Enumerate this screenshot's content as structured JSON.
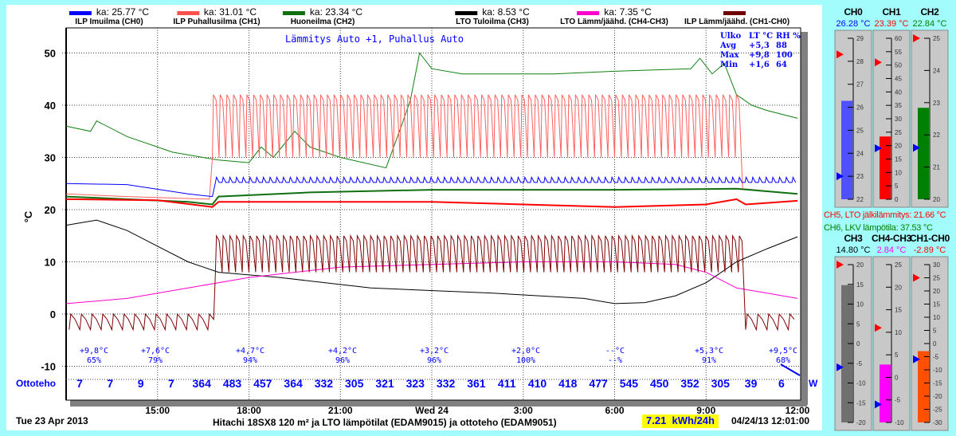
{
  "legend": [
    {
      "name": "ILP Imuilma (CH0)",
      "avg": "ka: 25.77 °C",
      "color": "#0000ff"
    },
    {
      "name": "ILP Puhallusilma (CH1)",
      "avg": "ka: 31.01 °C",
      "color": "#ff5050"
    },
    {
      "name": "Huoneilma (CH2)",
      "avg": "ka: 23.34 °C",
      "color": "#107010"
    },
    {
      "name": "LTO Tuloilma (CH3)",
      "avg": "ka: 8.53 °C",
      "color": "#000000"
    },
    {
      "name": "LTO Lämm/jäähd. (CH4-CH3)",
      "avg": "ka: 7.35 °C",
      "color": "#ff00cc"
    },
    {
      "name": "ILP Lämm/jäähd. (CH1-CH0)",
      "avg": "",
      "color": "#700000"
    }
  ],
  "mode_text": "Lämmitys Auto +1, Puhallus Auto",
  "outdoor_stats": [
    [
      "Ulko",
      "LT °C",
      "RH %"
    ],
    [
      "Avg",
      "+5,3",
      "88"
    ],
    [
      "Max",
      "+9,8",
      "100"
    ],
    [
      "Min",
      "+1,6",
      "64"
    ]
  ],
  "weather": [
    [
      "+9,8°C",
      "65%"
    ],
    [
      "+7,6°C",
      "79%"
    ],
    [
      "+4,7°C",
      "94%"
    ],
    [
      "+4,2°C",
      "96%"
    ],
    [
      "+3,2°C",
      "96%"
    ],
    [
      "+2,0°C",
      "100%"
    ],
    [
      "--°C",
      "--%"
    ],
    [
      "+5,3°C",
      "91%"
    ],
    [
      "+9,5°C",
      "68%"
    ]
  ],
  "power_label": "Ottoteho",
  "power_unit": "W",
  "power_values": [
    "7",
    "7",
    "9",
    "7",
    "364",
    "483",
    "457",
    "364",
    "332",
    "305",
    "321",
    "323",
    "332",
    "361",
    "411",
    "410",
    "418",
    "477",
    "545",
    "450",
    "352",
    "305",
    "39",
    "6"
  ],
  "date_label": "Tue 23 Apr 2013",
  "footer_title": "Hitachi 18SX8 120 m² ja LTO lämpötilat (EDAM9015) ja ottoteho (EDAM9051)",
  "energy": "7.21  kWh/24h",
  "timestamp": "04/24/13 12:01:00",
  "ch5_text": "CH5, LTO jälkilämmitys: 21.66 °C",
  "ch6_text": "CH6, LKV lämpötila: 37.53 °C",
  "gauges": [
    {
      "title": "CH0",
      "value": "26.28 °C",
      "v": 26.28,
      "min": 22,
      "max": 29,
      "step": 1,
      "red": 28.3,
      "blue": 23,
      "color": "#5050ff",
      "tcolor": "#0000ff"
    },
    {
      "title": "CH1",
      "value": "23.39 °C",
      "v": 23.39,
      "min": 0,
      "max": 60,
      "step": 5,
      "red": 51,
      "blue": 19,
      "color": "#ff0000",
      "tcolor": "#ff0000"
    },
    {
      "title": "CH2",
      "value": "22.84 °C",
      "v": 22.84,
      "min": 20,
      "max": 25,
      "step": 1,
      "red": 25,
      "blue": 21.6,
      "color": "#008000",
      "tcolor": "#008000"
    },
    {
      "title": "CH3",
      "value": "14.80 °C",
      "v": 14.8,
      "min": -20,
      "max": 20,
      "step": 5,
      "red": 20,
      "blue": -6,
      "color": "#707070",
      "tcolor": "#000000"
    },
    {
      "title": "CH4-CH3",
      "value": "2.84 °C",
      "v": 2.84,
      "min": -10,
      "max": 25,
      "step": 5,
      "red": 11,
      "blue": -6,
      "color": "#ff00ff",
      "tcolor": "#ff00ff"
    },
    {
      "title": "CH1-CH0",
      "value": "-2.89 °C",
      "v": -2.89,
      "min": -30,
      "max": 30,
      "step": 5,
      "red": 25,
      "blue": -6,
      "color": "#ff5000",
      "tcolor": "#ff0000"
    }
  ],
  "chart_data": {
    "type": "line",
    "ylabel": "°C",
    "ylim": [
      -16,
      55
    ],
    "yticks": [
      50,
      40,
      30,
      20,
      10,
      0,
      -10
    ],
    "xlim_hours": [
      12,
      36
    ],
    "xticks": [
      {
        "h": 15,
        "label": "15:00"
      },
      {
        "h": 18,
        "label": "18:00"
      },
      {
        "h": 21,
        "label": "21:00"
      },
      {
        "h": 24,
        "label": "Wed 24"
      },
      {
        "h": 27,
        "label": "3:00"
      },
      {
        "h": 30,
        "label": "6:00"
      },
      {
        "h": 33,
        "label": "9:00"
      },
      {
        "h": 36,
        "label": "12:00"
      }
    ],
    "series": [
      {
        "name": "CH6 LKV",
        "color": "#108010",
        "width": 1,
        "points": [
          [
            12,
            36
          ],
          [
            12.8,
            35
          ],
          [
            13,
            37
          ],
          [
            14,
            34
          ],
          [
            15.5,
            31
          ],
          [
            17,
            29.5
          ],
          [
            18,
            29
          ],
          [
            18.4,
            32
          ],
          [
            18.8,
            30
          ],
          [
            19.5,
            35
          ],
          [
            20,
            32
          ],
          [
            21,
            30
          ],
          [
            22.5,
            28
          ],
          [
            23,
            36
          ],
          [
            23.3,
            41
          ],
          [
            23.6,
            50
          ],
          [
            24,
            47
          ],
          [
            25,
            46
          ],
          [
            28,
            46
          ],
          [
            30,
            46.5
          ],
          [
            32.5,
            47
          ],
          [
            32.8,
            49
          ],
          [
            33.2,
            46
          ],
          [
            33.6,
            48
          ],
          [
            34,
            42
          ],
          [
            34.5,
            40
          ],
          [
            35,
            39
          ],
          [
            36,
            37.5
          ]
        ]
      },
      {
        "name": "CH1",
        "color": "#ff6060",
        "width": 1,
        "points": [
          [
            12,
            23
          ],
          [
            14,
            22.5
          ],
          [
            16.7,
            22
          ]
        ],
        "osc": {
          "start": 16.8,
          "end": 34.1,
          "low": 30,
          "high": 42,
          "period": 0.22
        },
        "tail": [
          [
            34.2,
            24
          ],
          [
            36,
            23
          ]
        ]
      },
      {
        "name": "CH0",
        "color": "#0000ff",
        "width": 1,
        "points": [
          [
            12,
            25
          ],
          [
            14,
            24.8
          ],
          [
            16,
            23
          ],
          [
            16.8,
            22.5
          ]
        ],
        "osc": {
          "start": 16.9,
          "end": 36,
          "low": 25.2,
          "high": 26.2,
          "period": 0.22
        }
      },
      {
        "name": "CH2",
        "color": "#107010",
        "width": 2,
        "points": [
          [
            12,
            22.5
          ],
          [
            16,
            21.5
          ],
          [
            16.8,
            21
          ],
          [
            17,
            22.5
          ],
          [
            20,
            23.3
          ],
          [
            24,
            23.8
          ],
          [
            30,
            23.8
          ],
          [
            34,
            24
          ],
          [
            36,
            23
          ]
        ]
      },
      {
        "name": "CH5",
        "color": "#ff0000",
        "width": 2,
        "points": [
          [
            12,
            22
          ],
          [
            15,
            21.8
          ],
          [
            16.8,
            20.5
          ],
          [
            17,
            21.5
          ],
          [
            24,
            21.5
          ],
          [
            30,
            20.5
          ],
          [
            33,
            21
          ],
          [
            34,
            22
          ],
          [
            34.3,
            21
          ],
          [
            36,
            21.7
          ]
        ]
      },
      {
        "name": "CH3",
        "color": "#000000",
        "width": 1,
        "points": [
          [
            12,
            17
          ],
          [
            13,
            18
          ],
          [
            14,
            16
          ],
          [
            15,
            13
          ],
          [
            16,
            10
          ],
          [
            17,
            8
          ],
          [
            19,
            7
          ],
          [
            22,
            5
          ],
          [
            26,
            4
          ],
          [
            29,
            3
          ],
          [
            30,
            2
          ],
          [
            31,
            2.2
          ],
          [
            32,
            3.5
          ],
          [
            33,
            6
          ],
          [
            34,
            10
          ],
          [
            35,
            12.5
          ],
          [
            36,
            14.8
          ]
        ]
      },
      {
        "name": "CH4-CH3",
        "color": "#ff00cc",
        "width": 1,
        "points": [
          [
            12,
            2
          ],
          [
            14,
            3
          ],
          [
            16,
            5
          ],
          [
            18,
            7
          ],
          [
            21,
            9
          ],
          [
            24,
            9.5
          ],
          [
            27,
            10
          ],
          [
            30,
            10
          ],
          [
            32,
            9.5
          ],
          [
            33,
            8
          ],
          [
            34,
            5
          ],
          [
            35,
            4
          ],
          [
            36,
            3
          ]
        ]
      },
      {
        "name": "CH1-CH0",
        "color": "#800000",
        "width": 1,
        "points": [],
        "osc": {
          "start": 12.1,
          "end": 16.7,
          "low": -3,
          "high": 0,
          "period": 0.35
        },
        "osc2": {
          "start": 16.9,
          "end": 34.1,
          "low": 8,
          "high": 15,
          "period": 0.22
        },
        "osc3": {
          "start": 34.3,
          "end": 36,
          "low": -3,
          "high": 0,
          "period": 0.35
        }
      }
    ]
  }
}
